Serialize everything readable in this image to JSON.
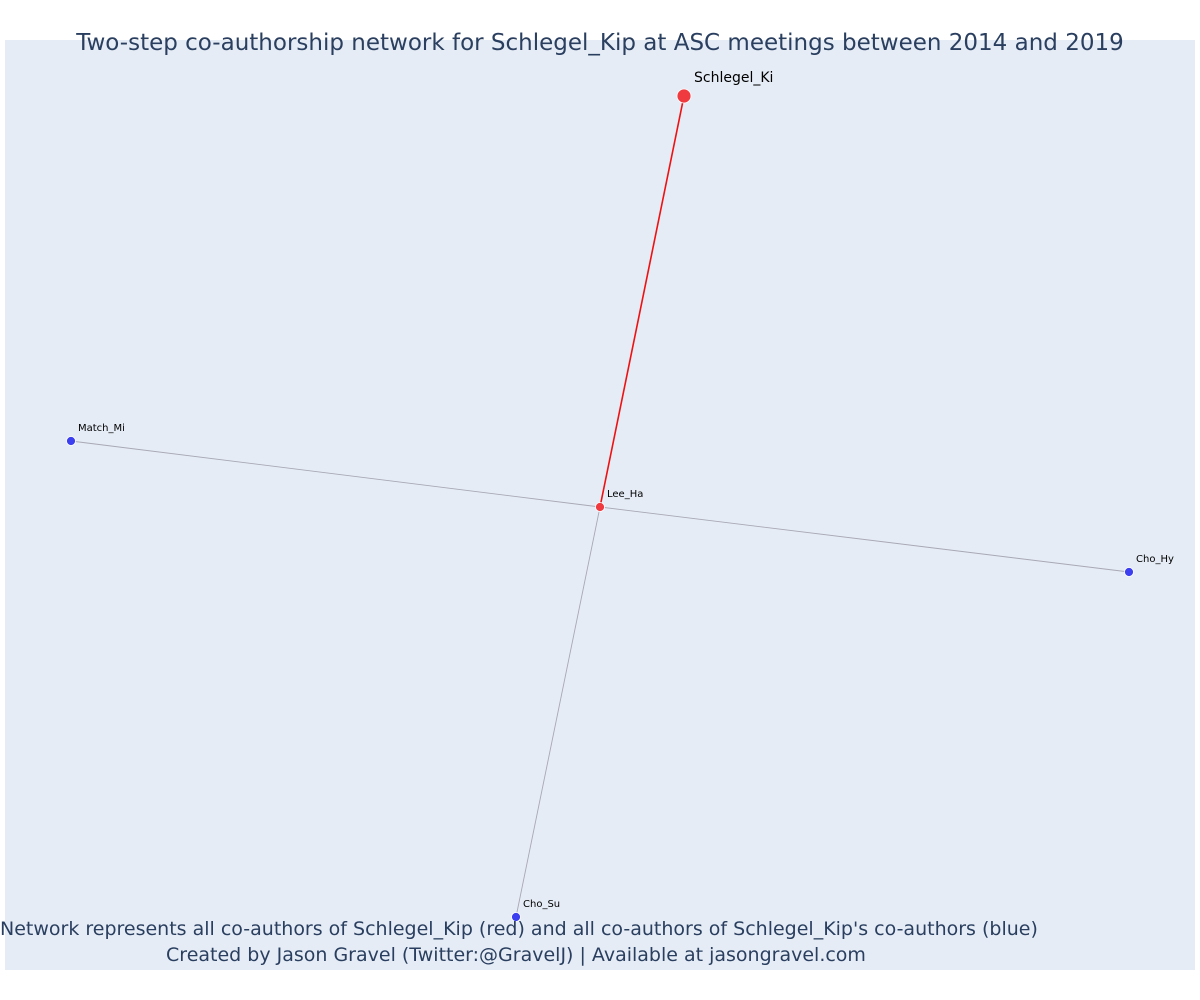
{
  "title": "Two-step co-authorship network for Schlegel_Kip at ASC meetings between 2014 and 2019",
  "caption": {
    "line1": "Network represents all co-authors of Schlegel_Kip (red) and all co-authors of Schlegel_Kip's co-authors (blue)",
    "line2": "Created by Jason Gravel (Twitter:@GravelJ) | Available at jasongravel.com"
  },
  "colors": {
    "background": "#e5ecf6",
    "focal_node": "#ef3b3f",
    "coauthor_node": "#ef3b3f",
    "second_step_node": "#3c3ff0",
    "focal_edge": "#ee1111",
    "other_edge": "#a8a8b4"
  },
  "network": {
    "nodes": [
      {
        "id": "Schlegel_Ki",
        "label": "Schlegel_Ki",
        "group": "focal"
      },
      {
        "id": "Lee_Ha",
        "label": "Lee_Ha",
        "group": "coauthor"
      },
      {
        "id": "Match_Mi",
        "label": "Match_Mi",
        "group": "second_step"
      },
      {
        "id": "Cho_Hy",
        "label": "Cho_Hy",
        "group": "second_step"
      },
      {
        "id": "Cho_Su",
        "label": "Cho_Su",
        "group": "second_step"
      }
    ],
    "edges": [
      {
        "source": "Schlegel_Ki",
        "target": "Lee_Ha",
        "type": "focal"
      },
      {
        "source": "Lee_Ha",
        "target": "Match_Mi",
        "type": "other"
      },
      {
        "source": "Lee_Ha",
        "target": "Cho_Hy",
        "type": "other"
      },
      {
        "source": "Lee_Ha",
        "target": "Cho_Su",
        "type": "other"
      }
    ]
  }
}
